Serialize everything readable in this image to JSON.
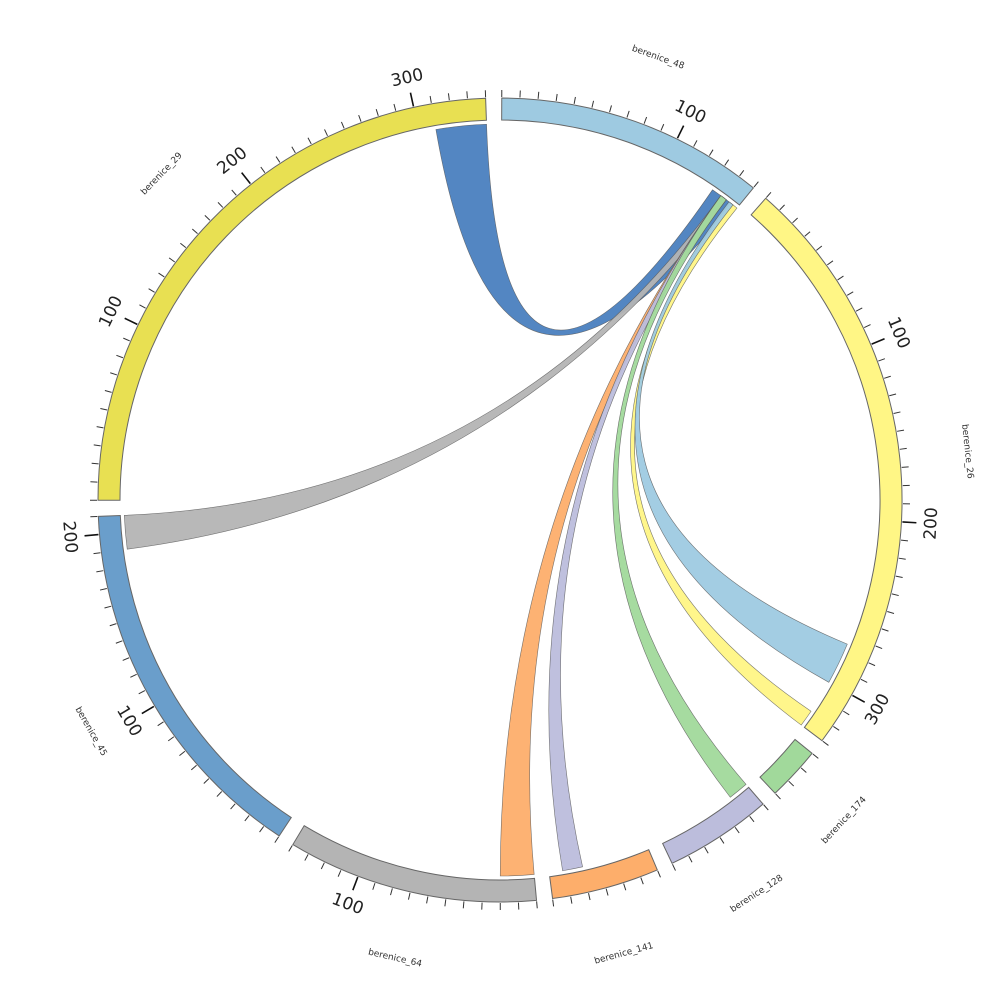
{
  "chart_data": {
    "type": "chord",
    "title": "",
    "tick_step": 10,
    "major_tick_step": 100,
    "segments": [
      {
        "name": "berenice_48",
        "length": 150,
        "color": "#9ecae1"
      },
      {
        "name": "berenice_26",
        "length": 330,
        "color": "#fff685"
      },
      {
        "name": "berenice_174",
        "length": 30,
        "color": "#a1d99b"
      },
      {
        "name": "berenice_128",
        "length": 60,
        "color": "#bcbddc"
      },
      {
        "name": "berenice_141",
        "length": 60,
        "color": "#fdae6b"
      },
      {
        "name": "berenice_64",
        "length": 140,
        "color": "#b4b4b4"
      },
      {
        "name": "berenice_45",
        "length": 210,
        "color": "#6a9ecb"
      },
      {
        "name": "berenice_29",
        "length": 340,
        "color": "#e8e052"
      }
    ],
    "links": [
      {
        "source": "berenice_48",
        "source_range": [
          132,
          146
        ],
        "target": "berenice_29",
        "target_range": [
          310,
          340
        ],
        "color": "#4a7fbf"
      },
      {
        "source": "berenice_48",
        "source_range": [
          138,
          142
        ],
        "target": "berenice_45",
        "target_range": [
          190,
          210
        ],
        "color": "#b4b4b4"
      },
      {
        "source": "berenice_48",
        "source_range": [
          138,
          142
        ],
        "target": "berenice_64",
        "target_range": [
          0,
          20
        ],
        "color": "#fdae6b"
      },
      {
        "source": "berenice_48",
        "source_range": [
          138,
          142
        ],
        "target": "berenice_141",
        "target_range": [
          40,
          52
        ],
        "color": "#bcbddc"
      },
      {
        "source": "berenice_48",
        "source_range": [
          138,
          142
        ],
        "target": "berenice_128",
        "target_range": [
          0,
          12
        ],
        "color": "#a1d99b"
      },
      {
        "source": "berenice_48",
        "source_range": [
          145,
          150
        ],
        "target": "berenice_26",
        "target_range": [
          320,
          330
        ],
        "color": "#fff685"
      },
      {
        "source": "berenice_48",
        "source_range": [
          144,
          147
        ],
        "target": "berenice_26",
        "target_range": [
          275,
          300
        ],
        "color": "#9ecae1"
      }
    ]
  }
}
